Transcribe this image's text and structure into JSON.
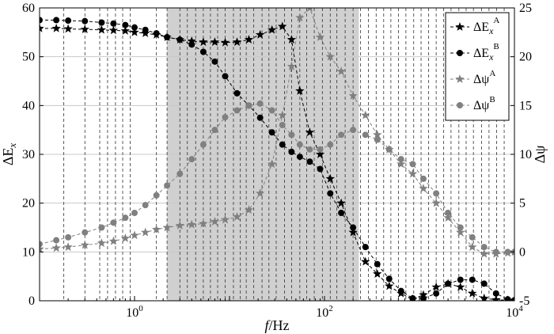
{
  "chart_data": {
    "type": "line",
    "x_scale": "log",
    "xlim": [
      0.1,
      10000
    ],
    "ylim_left": [
      0,
      60
    ],
    "ylim_right": [
      -5,
      25
    ],
    "xlabel_italic": "f",
    "xlabel_unit": "/Hz",
    "ylabel_left": {
      "base": "ΔE",
      "sub": "x"
    },
    "ylabel_right": "Δψ",
    "x_tick_labels": [
      {
        "x": 1,
        "base": "10",
        "exp": "0"
      },
      {
        "x": 100,
        "base": "10",
        "exp": "2"
      },
      {
        "x": 10000,
        "base": "10",
        "exp": "4"
      }
    ],
    "y_ticks_left": [
      "0",
      "10",
      "20",
      "30",
      "40",
      "50",
      "60"
    ],
    "y_ticks_right": [
      "-5",
      "0",
      "5",
      "10",
      "15",
      "20",
      "25"
    ],
    "y_tick_values_left": [
      0,
      10,
      20,
      30,
      40,
      50,
      60
    ],
    "y_tick_values_right": [
      -5,
      0,
      5,
      10,
      15,
      20,
      25
    ],
    "shaded_band": {
      "x_from": 2.2,
      "x_to": 230
    },
    "vertical_lines_x": [
      0.18,
      0.3,
      0.43,
      0.52,
      0.63,
      0.75,
      0.9,
      1.7,
      2.2,
      3.0,
      3.6,
      4.4,
      5.3,
      6.3,
      7.5,
      9.0,
      11.0,
      13.0,
      15.0,
      18.0,
      22.0,
      26.0,
      31.0,
      38.0,
      45.0,
      55.0,
      65.0,
      78.0,
      95.0,
      115.0,
      135.0,
      165.0,
      200.0,
      240.0,
      290.0,
      350.0,
      420.0,
      500.0,
      600.0,
      720.0,
      870.0,
      1040.0,
      1250.0,
      1500.0,
      1800.0,
      2150.0,
      2600.0,
      3100.0,
      3700.0,
      4500.0,
      5400.0,
      6500.0,
      7800.0
    ],
    "grid": true,
    "legend_position": "top-right",
    "series": [
      {
        "name_base": "ΔE",
        "name_sub": "x",
        "name_sup": "A",
        "axis": "left",
        "marker": "star",
        "color": "#000000",
        "x": [
          0.1,
          0.15,
          0.2,
          0.3,
          0.45,
          0.6,
          0.8,
          1.0,
          1.3,
          1.7,
          2.2,
          3.0,
          4.0,
          5.3,
          7.0,
          9.0,
          12.0,
          16.0,
          21.0,
          28.0,
          36.0,
          45.0,
          55.0,
          70.0,
          90.0,
          115.0,
          150.0,
          200.0,
          270.0,
          360.0,
          480.0,
          640.0,
          850.0,
          1100.0,
          1500.0,
          2000.0,
          2700.0,
          3600.0,
          4800.0,
          6400.0,
          8500.0,
          10000.0
        ],
        "y": [
          55.8,
          55.8,
          55.7,
          55.6,
          55.5,
          55.4,
          55.3,
          55.0,
          54.8,
          54.5,
          54.0,
          53.5,
          53.2,
          53.0,
          53.0,
          52.9,
          53.0,
          53.5,
          54.5,
          55.5,
          56.2,
          53.5,
          43.0,
          34.5,
          30.0,
          25.0,
          20.0,
          14.0,
          8.0,
          5.5,
          3.0,
          1.5,
          0.3,
          1.2,
          2.8,
          3.5,
          2.8,
          1.5,
          0.5,
          0.2,
          0.1,
          0.1
        ]
      },
      {
        "name_base": "ΔE",
        "name_sub": "x",
        "name_sup": "B",
        "axis": "left",
        "marker": "circle",
        "color": "#000000",
        "x": [
          0.1,
          0.15,
          0.2,
          0.3,
          0.45,
          0.6,
          0.8,
          1.0,
          1.3,
          1.7,
          2.2,
          3.0,
          4.0,
          5.3,
          7.0,
          9.0,
          12.0,
          16.0,
          21.0,
          28.0,
          36.0,
          45.0,
          55.0,
          70.0,
          90.0,
          115.0,
          150.0,
          200.0,
          270.0,
          360.0,
          480.0,
          640.0,
          850.0,
          1100.0,
          1500.0,
          2000.0,
          2700.0,
          3600.0,
          4800.0,
          6400.0,
          8500.0,
          10000.0
        ],
        "y": [
          57.5,
          57.5,
          57.4,
          57.3,
          57.0,
          56.8,
          56.5,
          56.0,
          55.5,
          54.8,
          54.0,
          53.5,
          52.5,
          51.0,
          49.0,
          46.0,
          42.5,
          40.0,
          37.5,
          34.5,
          32.0,
          30.5,
          29.5,
          28.5,
          27.0,
          22.0,
          18.0,
          15.0,
          11.0,
          7.5,
          4.5,
          2.0,
          0.5,
          0.5,
          1.5,
          3.5,
          4.3,
          4.3,
          3.5,
          1.5,
          0.3,
          0.1
        ]
      },
      {
        "name_base": "Δψ",
        "name_sub": "",
        "name_sup": "A",
        "axis": "right",
        "marker": "star",
        "color": "#808080",
        "x": [
          0.1,
          0.15,
          0.2,
          0.3,
          0.45,
          0.6,
          0.8,
          1.0,
          1.3,
          1.7,
          2.2,
          3.0,
          4.0,
          5.3,
          7.0,
          9.0,
          12.0,
          16.0,
          21.0,
          28.0,
          36.0,
          45.0,
          55.0,
          70.0,
          90.0,
          115.0,
          150.0,
          200.0,
          270.0,
          360.0,
          480.0,
          640.0,
          850.0,
          1100.0,
          1500.0,
          2000.0,
          2700.0,
          3600.0,
          4800.0,
          6400.0,
          8500.0,
          10000.0
        ],
        "y": [
          0.3,
          0.4,
          0.5,
          0.7,
          0.9,
          1.1,
          1.4,
          1.7,
          2.0,
          2.3,
          2.5,
          2.7,
          2.8,
          2.9,
          3.1,
          3.3,
          3.6,
          4.3,
          6.0,
          9.0,
          14.0,
          19.0,
          24.0,
          25.0,
          22.0,
          20.0,
          18.5,
          16.0,
          14.0,
          12.0,
          10.5,
          9.0,
          8.0,
          6.5,
          5.0,
          3.5,
          2.0,
          0.5,
          -0.2,
          -0.2,
          -0.1,
          0.0
        ]
      },
      {
        "name_base": "Δψ",
        "name_sub": "",
        "name_sup": "B",
        "axis": "right",
        "marker": "circle",
        "color": "#808080",
        "x": [
          0.1,
          0.15,
          0.2,
          0.3,
          0.45,
          0.6,
          0.8,
          1.0,
          1.3,
          1.7,
          2.2,
          3.0,
          4.0,
          5.3,
          7.0,
          9.0,
          12.0,
          16.0,
          21.0,
          28.0,
          36.0,
          45.0,
          55.0,
          70.0,
          90.0,
          115.0,
          150.0,
          200.0,
          270.0,
          360.0,
          480.0,
          640.0,
          850.0,
          1100.0,
          1500.0,
          2000.0,
          2700.0,
          3600.0,
          4800.0,
          6400.0,
          8500.0,
          10000.0
        ],
        "y": [
          0.8,
          1.2,
          1.5,
          2.0,
          2.5,
          3.0,
          3.5,
          4.0,
          4.8,
          5.8,
          6.8,
          8.0,
          9.5,
          11.0,
          12.5,
          13.8,
          14.5,
          15.0,
          15.2,
          14.5,
          13.0,
          12.0,
          11.0,
          10.5,
          10.5,
          11.0,
          12.0,
          12.5,
          12.0,
          11.5,
          10.5,
          9.5,
          9.0,
          7.5,
          6.0,
          4.0,
          2.5,
          1.5,
          0.5,
          0.0,
          0.0,
          0.0
        ]
      }
    ]
  }
}
